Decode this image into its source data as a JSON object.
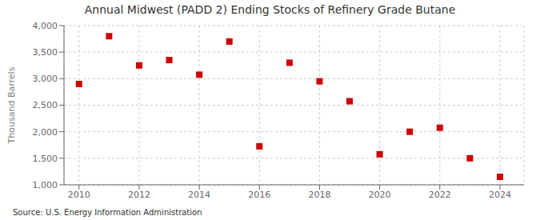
{
  "chart_data": {
    "type": "scatter",
    "title": "Annual Midwest (PADD 2) Ending Stocks of Refinery Grade Butane",
    "ylabel": "Thousand Barrels",
    "annotations": [
      "Source: U.S. Energy Information Administration"
    ],
    "x": [
      2010,
      2011,
      2012,
      2013,
      2014,
      2015,
      2016,
      2017,
      2018,
      2019,
      2020,
      2021,
      2022,
      2023,
      2024
    ],
    "values": [
      2900,
      3800,
      3250,
      3350,
      3075,
      3700,
      1725,
      3300,
      2950,
      2575,
      1575,
      2000,
      2075,
      1500,
      1150
    ],
    "color": "#cc0000",
    "marker": "square",
    "xlim": [
      2009.5,
      2024.8
    ],
    "xticks": [
      2010,
      2012,
      2014,
      2016,
      2018,
      2020,
      2022,
      2024
    ],
    "ylim": [
      1000,
      4000
    ],
    "yticks": [
      {
        "value": 1000,
        "label": "1,000"
      },
      {
        "value": 1500,
        "label": "1,500"
      },
      {
        "value": 2000,
        "label": "2,000"
      },
      {
        "value": 2500,
        "label": "2,500"
      },
      {
        "value": 3000,
        "label": "3,000"
      },
      {
        "value": 3500,
        "label": "3,500"
      },
      {
        "value": 4000,
        "label": "4,000"
      }
    ],
    "grid": true
  }
}
